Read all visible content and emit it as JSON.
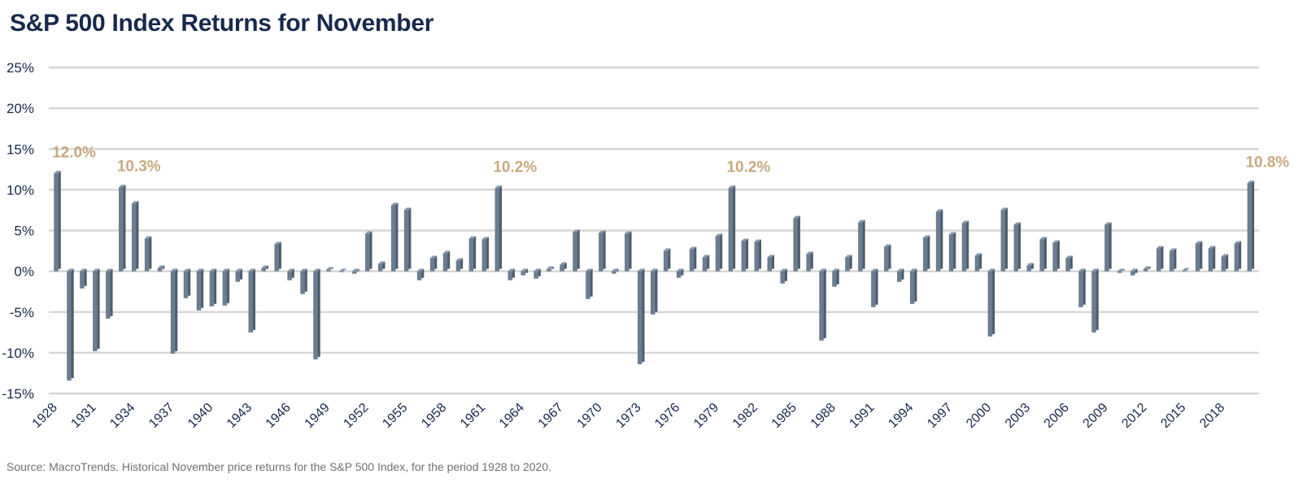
{
  "title": "S&P 500 Index Returns for November",
  "source": "Source: MacroTrends. Historical November price returns for the S&P 500 Index, for the period 1928 to 2020.",
  "chart_data": {
    "type": "bar",
    "title": "S&P 500 Index Returns for November",
    "xlabel": "",
    "ylabel": "",
    "ylim": [
      -15,
      25
    ],
    "y_ticks": [
      25,
      20,
      15,
      10,
      5,
      0,
      -5,
      -10,
      -15
    ],
    "y_tick_labels": [
      "25%",
      "20%",
      "15%",
      "10%",
      "5%",
      "0%",
      "-5%",
      "-10%",
      "-15%"
    ],
    "x_tick_labels": [
      "1928",
      "1931",
      "1934",
      "1937",
      "1940",
      "1943",
      "1946",
      "1949",
      "1952",
      "1955",
      "1958",
      "1961",
      "1964",
      "1967",
      "1970",
      "1973",
      "1976",
      "1979",
      "1982",
      "1985",
      "1988",
      "1991",
      "1994",
      "1997",
      "2000",
      "2003",
      "2006",
      "2009",
      "2012",
      "2015",
      "2018"
    ],
    "grid": true,
    "legend": "none",
    "series": [
      {
        "x": [
          1928,
          1929,
          1930,
          1931,
          1932,
          1933,
          1934,
          1935,
          1936,
          1937,
          1938,
          1939,
          1940,
          1941,
          1942,
          1943,
          1944,
          1945,
          1946,
          1947,
          1948,
          1949,
          1950,
          1951,
          1952,
          1953,
          1954,
          1955,
          1956,
          1957,
          1958,
          1959,
          1960,
          1961,
          1962,
          1963,
          1964,
          1965,
          1966,
          1967,
          1968,
          1969,
          1970,
          1971,
          1972,
          1973,
          1974,
          1975,
          1976,
          1977,
          1978,
          1979,
          1980,
          1981,
          1982,
          1983,
          1984,
          1985,
          1986,
          1987,
          1988,
          1989,
          1990,
          1991,
          1992,
          1993,
          1994,
          1995,
          1996,
          1997,
          1998,
          1999,
          2000,
          2001,
          2002,
          2003,
          2004,
          2005,
          2006,
          2007,
          2008,
          2009,
          2010,
          2011,
          2012,
          2013,
          2014,
          2015,
          2016,
          2017,
          2018,
          2019,
          2020
        ],
        "values": [
          12.0,
          -13.4,
          -2.1,
          -9.8,
          -5.8,
          10.3,
          8.3,
          4.0,
          0.4,
          -10.1,
          -3.3,
          -4.8,
          -4.3,
          -4.2,
          -1.3,
          -7.5,
          0.4,
          3.3,
          -1.1,
          -2.8,
          -10.8,
          0.2,
          -0.1,
          -0.3,
          4.6,
          0.9,
          8.1,
          7.5,
          -1.1,
          1.6,
          2.2,
          1.3,
          4.0,
          3.9,
          10.2,
          -1.1,
          -0.5,
          -0.9,
          0.3,
          0.8,
          4.8,
          -3.4,
          4.7,
          -0.3,
          4.6,
          -11.4,
          -5.3,
          2.5,
          -0.8,
          2.7,
          1.7,
          4.3,
          10.2,
          3.7,
          3.6,
          1.7,
          -1.5,
          6.5,
          2.1,
          -8.5,
          -1.9,
          1.7,
          6.0,
          -4.4,
          3.0,
          -1.3,
          -4.0,
          4.1,
          7.3,
          4.5,
          5.9,
          1.9,
          -8.0,
          7.5,
          5.7,
          0.7,
          3.9,
          3.5,
          1.6,
          -4.4,
          -7.5,
          5.7,
          -0.2,
          -0.5,
          0.3,
          2.8,
          2.5,
          0.1,
          3.4,
          2.8,
          1.8,
          3.4,
          10.8
        ]
      }
    ],
    "annotations": [
      {
        "year": 1928,
        "text": "12.0%"
      },
      {
        "year": 1933,
        "text": "10.3%"
      },
      {
        "year": 1962,
        "text": "10.2%"
      },
      {
        "year": 1980,
        "text": "10.2%"
      },
      {
        "year": 2020,
        "text": "10.8%"
      }
    ],
    "colors": {
      "bar": "#6b7d91",
      "bar_highlight": "#8a9aac",
      "bar_shadow": "#4d5d6f",
      "annotation": "#c8a97e",
      "grid": "#d6d6d6",
      "title": "#17294d",
      "axis_text": "#17294d"
    }
  }
}
